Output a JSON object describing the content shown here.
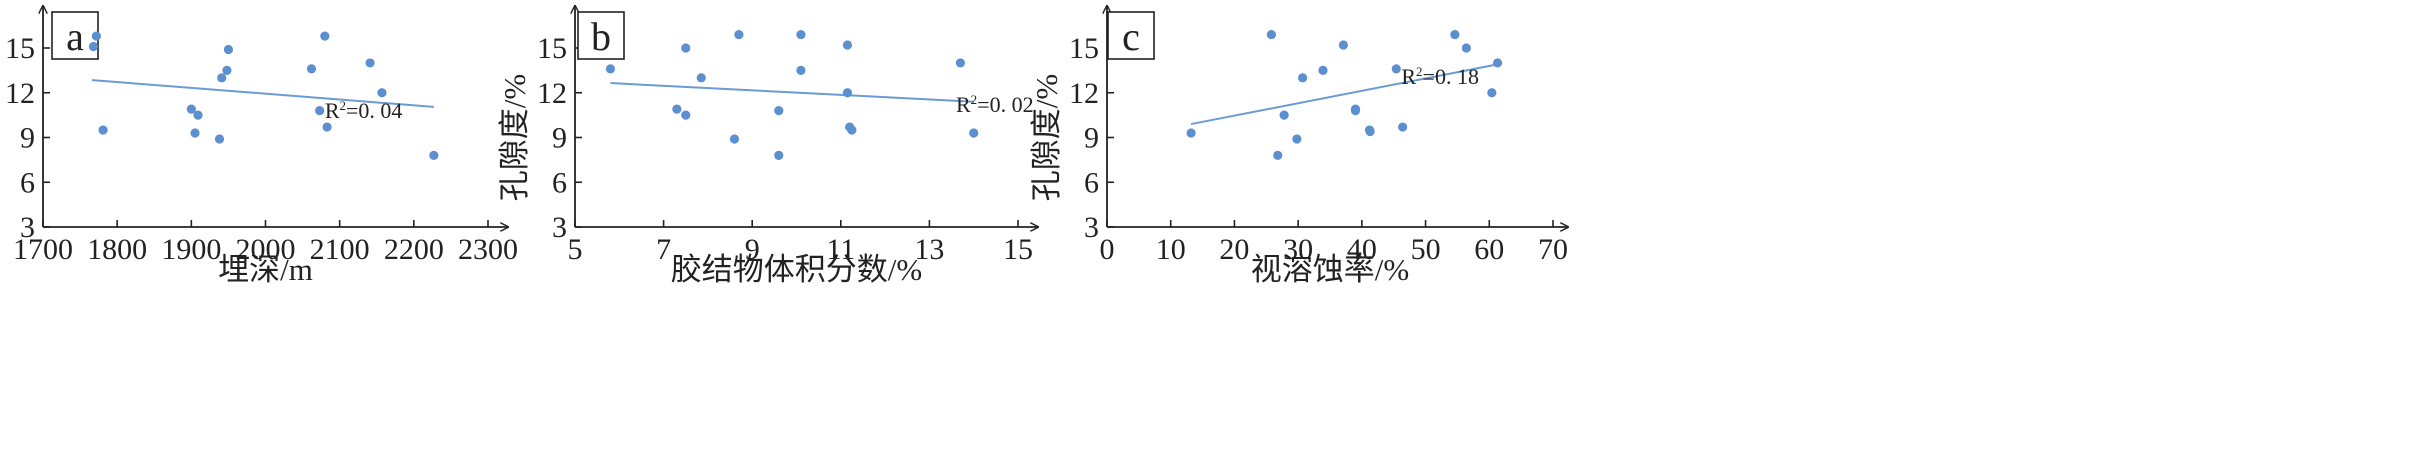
{
  "chart_data": [
    {
      "type": "scatter",
      "panel_label": "a",
      "xlabel": "埋深/m",
      "ylabel": "孔隙度/%",
      "xlim": [
        1700,
        2300
      ],
      "ylim": [
        3,
        18
      ],
      "xticks": [
        "1700",
        "1800",
        "1900",
        "2000",
        "2100",
        "2200",
        "2300"
      ],
      "yticks": [
        "3",
        "6",
        "9",
        "12",
        "15"
      ],
      "points": [
        {
          "x": 1768,
          "y": 15.1
        },
        {
          "x": 1772,
          "y": 15.8
        },
        {
          "x": 1781,
          "y": 9.5
        },
        {
          "x": 1900,
          "y": 10.9
        },
        {
          "x": 1905,
          "y": 9.3
        },
        {
          "x": 1909,
          "y": 10.5
        },
        {
          "x": 1938,
          "y": 8.9
        },
        {
          "x": 1941,
          "y": 13.0
        },
        {
          "x": 1948,
          "y": 13.5
        },
        {
          "x": 1950,
          "y": 14.9
        },
        {
          "x": 2062,
          "y": 13.6
        },
        {
          "x": 2073,
          "y": 10.8
        },
        {
          "x": 2080,
          "y": 15.8
        },
        {
          "x": 2083,
          "y": 9.7
        },
        {
          "x": 2141,
          "y": 14.0
        },
        {
          "x": 2157,
          "y": 12.0
        },
        {
          "x": 2227,
          "y": 7.8
        }
      ],
      "trendline": {
        "x": [
          1766,
          2227
        ],
        "y": [
          12.85,
          11.05
        ]
      },
      "annotation": {
        "base": "R",
        "sup": "2",
        "rest": "=0. 04"
      },
      "colors": {
        "points": "#5b8fcf",
        "line": "#6a9bd4"
      }
    },
    {
      "type": "scatter",
      "panel_label": "b",
      "xlabel": "胶结物体积分数/%",
      "ylabel": "孔隙度/%",
      "xlim": [
        5,
        15
      ],
      "ylim": [
        3,
        18
      ],
      "xticks": [
        "5",
        "7",
        "9",
        "11",
        "13",
        "15"
      ],
      "yticks": [
        "3",
        "6",
        "9",
        "12",
        "15"
      ],
      "points": [
        {
          "x": 5.8,
          "y": 13.6
        },
        {
          "x": 7.3,
          "y": 10.9
        },
        {
          "x": 7.5,
          "y": 15.0
        },
        {
          "x": 7.5,
          "y": 10.5
        },
        {
          "x": 7.85,
          "y": 13.0
        },
        {
          "x": 8.6,
          "y": 8.9
        },
        {
          "x": 8.7,
          "y": 15.9
        },
        {
          "x": 9.6,
          "y": 10.8
        },
        {
          "x": 9.6,
          "y": 7.8
        },
        {
          "x": 10.1,
          "y": 15.9
        },
        {
          "x": 10.1,
          "y": 13.5
        },
        {
          "x": 11.15,
          "y": 15.2
        },
        {
          "x": 11.15,
          "y": 12.0
        },
        {
          "x": 11.2,
          "y": 9.7
        },
        {
          "x": 11.25,
          "y": 9.5
        },
        {
          "x": 13.7,
          "y": 14.0
        },
        {
          "x": 14.0,
          "y": 9.3
        }
      ],
      "trendline": {
        "x": [
          5.8,
          14.0
        ],
        "y": [
          12.65,
          11.4
        ]
      },
      "annotation": {
        "base": "R",
        "sup": "2",
        "rest": "=0. 02"
      },
      "colors": {
        "points": "#5b8fcf",
        "line": "#6a9bd4"
      }
    },
    {
      "type": "scatter",
      "panel_label": "c",
      "xlabel": "视溶蚀率/%",
      "ylabel": "孔隙度/%",
      "xlim": [
        0,
        70
      ],
      "ylim": [
        3,
        18
      ],
      "xticks": [
        "0",
        "10",
        "20",
        "30",
        "40",
        "50",
        "60",
        "70"
      ],
      "yticks": [
        "3",
        "6",
        "9",
        "12",
        "15"
      ],
      "points": [
        {
          "x": 13.2,
          "y": 9.3
        },
        {
          "x": 25.8,
          "y": 15.9
        },
        {
          "x": 26.8,
          "y": 7.8
        },
        {
          "x": 27.8,
          "y": 10.5
        },
        {
          "x": 29.8,
          "y": 8.9
        },
        {
          "x": 30.7,
          "y": 13.0
        },
        {
          "x": 33.9,
          "y": 13.5
        },
        {
          "x": 37.1,
          "y": 15.2
        },
        {
          "x": 39.0,
          "y": 10.9
        },
        {
          "x": 39.0,
          "y": 10.8
        },
        {
          "x": 41.2,
          "y": 9.5
        },
        {
          "x": 41.3,
          "y": 9.4
        },
        {
          "x": 45.4,
          "y": 13.6
        },
        {
          "x": 46.4,
          "y": 9.7
        },
        {
          "x": 54.6,
          "y": 15.9
        },
        {
          "x": 56.4,
          "y": 15.0
        },
        {
          "x": 60.4,
          "y": 12.0
        },
        {
          "x": 61.3,
          "y": 14.0
        }
      ],
      "trendline": {
        "x": [
          13.2,
          61.3
        ],
        "y": [
          9.9,
          13.9
        ]
      },
      "annotation": {
        "base": "R",
        "sup": "2",
        "rest": "=0. 18"
      },
      "colors": {
        "points": "#5b8fcf",
        "line": "#6a9bd4"
      }
    }
  ]
}
